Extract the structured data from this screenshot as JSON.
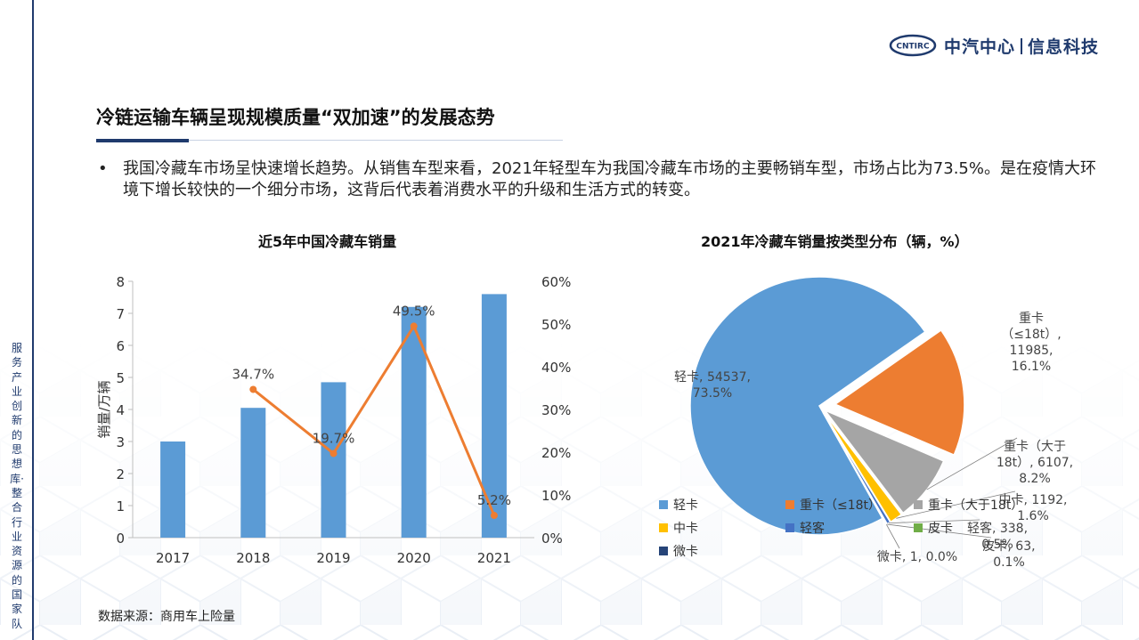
{
  "side_text": "服务产业创新的思想库·整合行业资源的国家队",
  "logo": {
    "badge": "CNTIRC",
    "name_left": "中汽中心",
    "name_right": "信息科技"
  },
  "title": "冷链运输车辆呈现规模质量“双加速”的发展态势",
  "bullet": {
    "dot": "•",
    "text": "我国冷藏车市场呈快速增长趋势。从销售车型来看，2021年轻型车为我国冷藏车市场的主要畅销车型，市场占比为73.5%。是在疫情大环境下增长较快的一个细分市场，这背后代表着消费水平的升级和生活方式的转变。"
  },
  "colors": {
    "bar": "#5b9bd5",
    "line": "#ed7d31",
    "navy": "#1f3a6d"
  },
  "chart_data": [
    {
      "type": "bar",
      "title": "近5年中国冷藏车销量",
      "categories": [
        "2017",
        "2018",
        "2019",
        "2020",
        "2021"
      ],
      "series": [
        {
          "kind": "bar",
          "values": [
            3.0,
            4.05,
            4.85,
            7.2,
            7.6
          ],
          "axis": "left"
        },
        {
          "kind": "line",
          "values": [
            null,
            34.7,
            19.7,
            49.5,
            5.2
          ],
          "labels": [
            "",
            "34.7%",
            "19.7%",
            "49.5%",
            "5.2%"
          ],
          "axis": "right"
        }
      ],
      "ylabel": "销量/万辆",
      "ylim": [
        0,
        8
      ],
      "y_ticks": [
        "0",
        "1",
        "2",
        "3",
        "4",
        "5",
        "6",
        "7",
        "8"
      ],
      "y2lim": [
        0,
        60
      ],
      "y2_ticks": [
        "0%",
        "10%",
        "20%",
        "30%",
        "40%",
        "50%",
        "60%"
      ],
      "grid": false
    },
    {
      "type": "pie",
      "title": "2021年冷藏车销量按类型分布（辆，%）",
      "slices": [
        {
          "name": "轻卡",
          "value": 54537,
          "percent": 73.5,
          "color": "#5b9bd5",
          "label_lines": [
            "轻卡, 54537,",
            "73.5%"
          ]
        },
        {
          "name": "重卡（≤18t）",
          "value": 11985,
          "percent": 16.1,
          "color": "#ed7d31",
          "label_lines": [
            "重卡",
            "（≤18t）,",
            "11985,",
            "16.1%"
          ]
        },
        {
          "name": "重卡（大于18t）",
          "value": 6107,
          "percent": 8.2,
          "color": "#a5a5a5",
          "label_lines": [
            "重卡（大于",
            "18t）, 6107,",
            "8.2%"
          ]
        },
        {
          "name": "中卡",
          "value": 1192,
          "percent": 1.6,
          "color": "#ffc000",
          "label_lines": [
            "中卡, 1192,",
            "1.6%"
          ]
        },
        {
          "name": "轻客",
          "value": 338,
          "percent": 0.5,
          "color": "#4472c4",
          "label_lines": [
            "轻客, 338,",
            "0.5%"
          ]
        },
        {
          "name": "皮卡",
          "value": 63,
          "percent": 0.1,
          "color": "#70ad47",
          "label_lines": [
            "皮卡, 63,",
            "0.1%"
          ]
        },
        {
          "name": "微卡",
          "value": 1,
          "percent": 0.0,
          "color": "#264478",
          "label_lines": [
            "微卡, 1, 0.0%"
          ]
        }
      ],
      "legend": [
        "轻卡",
        "重卡（≤18t）",
        "重卡（大于18t）",
        "中卡",
        "轻客",
        "皮卡",
        "微卡"
      ],
      "legend_position": "bottom-left"
    }
  ],
  "source": "数据来源：商用车上险量"
}
